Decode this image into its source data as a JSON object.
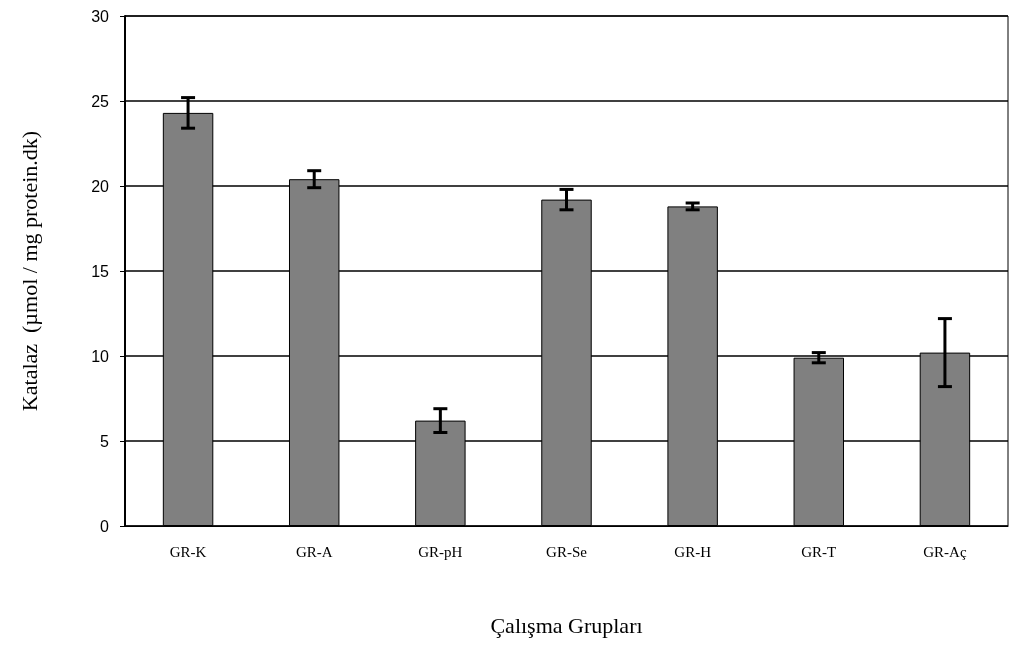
{
  "chart_data": {
    "type": "bar",
    "xlabel": "Çalışma Grupları",
    "ylabel": "Katalaz  (µmol / mg protein.dk)",
    "categories": [
      "GR-K",
      "GR-A",
      "GR-pH",
      "GR-Se",
      "GR-H",
      "GR-T",
      "GR-Aç"
    ],
    "values": [
      24.3,
      20.4,
      6.2,
      19.2,
      18.8,
      9.9,
      10.2
    ],
    "errors": [
      0.9,
      0.5,
      0.7,
      0.6,
      0.2,
      0.3,
      2.0
    ],
    "color": "#808080",
    "ylim": [
      0,
      30
    ],
    "yticks": [
      0,
      5,
      10,
      15,
      20,
      25,
      30
    ],
    "grid": "y"
  }
}
